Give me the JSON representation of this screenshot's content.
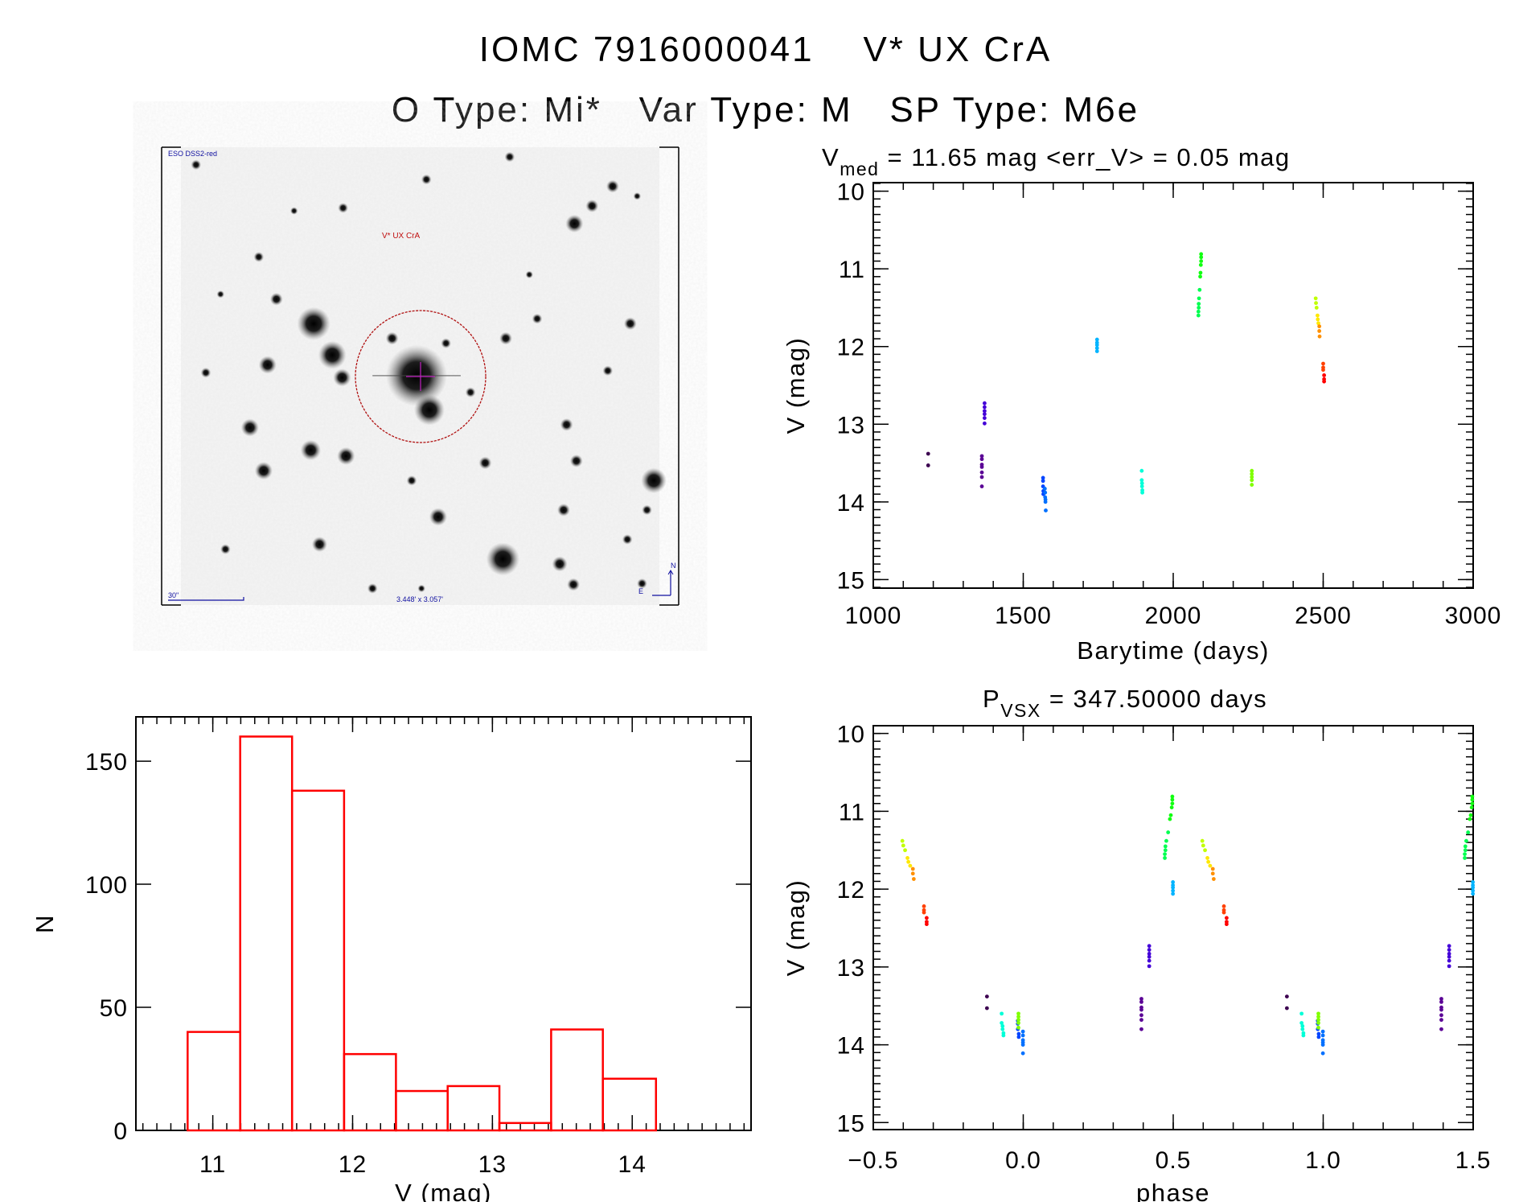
{
  "header": {
    "title": "IOMC 7916000041    V* UX CrA",
    "subtitle": "O Type: Mi*   Var Type: M   SP Type: M6e"
  },
  "sky_image": {
    "survey_label": "ESO DSS2-red",
    "target_label": "V* UX CrA",
    "scale_label": "30\"",
    "fov_label": "3.448' x 3.057'",
    "north_label": "N",
    "east_label": "E"
  },
  "chart_data": [
    {
      "type": "scatter",
      "id": "lightcurve",
      "title_main": "V",
      "title_sub": "med",
      "title_rest": " = 11.65 mag <err_V> = 0.05 mag",
      "xlabel": "Barytime (days)",
      "ylabel": "V (mag)",
      "xlim": [
        1000,
        3000
      ],
      "ylim": [
        15.11,
        9.89
      ],
      "xticks": [
        1000,
        1500,
        2000,
        2500,
        3000
      ],
      "xtick_labels": [
        "1000",
        "1500",
        "2000",
        "2500",
        "3000"
      ],
      "yticks": [
        10,
        11,
        12,
        13,
        14,
        15
      ],
      "ytick_labels": [
        "10",
        "11",
        "12",
        "13",
        "14",
        "15"
      ]
    },
    {
      "type": "scatter",
      "id": "phased",
      "title_main": "P",
      "title_sub": "VSX",
      "title_rest": " = 347.50000 days",
      "period_days": 347.5,
      "xlabel": "phase",
      "ylabel": "V (mag)",
      "xlim": [
        -0.5,
        1.5
      ],
      "ylim": [
        15.09,
        9.9
      ],
      "xticks": [
        -0.5,
        0.0,
        0.5,
        1.0,
        1.5
      ],
      "xtick_labels": [
        "−0.5",
        "0.0",
        "0.5",
        "1.0",
        "1.5"
      ],
      "yticks": [
        10,
        11,
        12,
        13,
        14,
        15
      ],
      "ytick_labels": [
        "10",
        "11",
        "12",
        "13",
        "14",
        "15"
      ]
    },
    {
      "type": "bar",
      "id": "histogram",
      "xlabel": "V (mag)",
      "ylabel": "N",
      "bin_edges": [
        10.82,
        11.196,
        11.567,
        11.939,
        12.31,
        12.68,
        13.05,
        13.42,
        13.79,
        14.17
      ],
      "values": [
        40,
        160,
        138,
        31,
        16,
        18,
        3,
        41,
        21
      ],
      "bar_color": "#ff0000",
      "xlim": [
        10.45,
        14.85
      ],
      "ylim": [
        0,
        168
      ],
      "xticks": [
        11,
        12,
        13,
        14
      ],
      "xtick_labels": [
        "11",
        "12",
        "13",
        "14"
      ],
      "yticks": [
        0,
        50,
        100,
        150
      ],
      "ytick_labels": [
        "0",
        "50",
        "100",
        "150"
      ]
    }
  ],
  "observations": [
    {
      "color": "#3c0050",
      "pts": [
        [
          1183,
          13.38,
          0.879
        ],
        [
          1183,
          13.53,
          0.879
        ]
      ]
    },
    {
      "color": "#5a0095",
      "pts": [
        [
          1362,
          13.41,
          0.394
        ],
        [
          1362,
          13.45,
          0.394
        ],
        [
          1362,
          13.52,
          0.394
        ],
        [
          1362,
          13.55,
          0.394
        ],
        [
          1362,
          13.62,
          0.394
        ],
        [
          1362,
          13.68,
          0.394
        ],
        [
          1362,
          13.8,
          0.394
        ]
      ]
    },
    {
      "color": "#4400d8",
      "pts": [
        [
          1371,
          12.73,
          0.42
        ],
        [
          1371,
          12.78,
          0.42
        ],
        [
          1371,
          12.83,
          0.42
        ],
        [
          1371,
          12.87,
          0.42
        ],
        [
          1371,
          12.92,
          0.42
        ],
        [
          1371,
          12.99,
          0.42
        ]
      ]
    },
    {
      "color": "#0044ff",
      "pts": [
        [
          1566,
          13.69,
          0.982
        ],
        [
          1566,
          13.73,
          0.982
        ],
        [
          1566,
          13.8,
          0.982
        ],
        [
          1567,
          13.86,
          0.985
        ],
        [
          1567,
          13.9,
          0.985
        ]
      ]
    },
    {
      "color": "#0070ff",
      "pts": [
        [
          1572,
          13.83,
          0.999
        ],
        [
          1573,
          13.88,
          0.999
        ],
        [
          1573,
          13.94,
          0.999
        ],
        [
          1574,
          13.97,
          0.999
        ],
        [
          1574,
          14.0,
          0.999
        ],
        [
          1575,
          14.11,
          0.999
        ]
      ]
    },
    {
      "color": "#00b4ff",
      "pts": [
        [
          1746,
          11.91,
          0.499
        ],
        [
          1746,
          11.95,
          0.499
        ],
        [
          1746,
          11.98,
          0.499
        ],
        [
          1746,
          12.02,
          0.499
        ],
        [
          1746,
          12.06,
          0.499
        ]
      ]
    },
    {
      "color": "#00ffd8",
      "pts": [
        [
          1895,
          13.6,
          0.928
        ],
        [
          1895,
          13.72,
          0.928
        ],
        [
          1896,
          13.76,
          0.931
        ],
        [
          1896,
          13.8,
          0.931
        ],
        [
          1897,
          13.85,
          0.934
        ],
        [
          1897,
          13.88,
          0.934
        ]
      ]
    },
    {
      "color": "#00ff50",
      "pts": [
        [
          2084,
          11.6,
          0.472
        ],
        [
          2084,
          11.55,
          0.472
        ],
        [
          2085,
          11.5,
          0.474
        ],
        [
          2085,
          11.45,
          0.474
        ],
        [
          2086,
          11.38,
          0.477
        ],
        [
          2088,
          11.27,
          0.483
        ]
      ]
    },
    {
      "color": "#10ff10",
      "pts": [
        [
          2090,
          11.1,
          0.489
        ],
        [
          2091,
          11.05,
          0.492
        ],
        [
          2092,
          10.95,
          0.495
        ],
        [
          2093,
          10.9,
          0.497
        ],
        [
          2093,
          10.85,
          0.497
        ],
        [
          2093,
          10.81,
          0.497
        ]
      ]
    },
    {
      "color": "#80ff00",
      "pts": [
        [
          2262,
          13.6,
          0.984
        ],
        [
          2262,
          13.64,
          0.984
        ],
        [
          2262,
          13.68,
          0.984
        ],
        [
          2262,
          13.72,
          0.984
        ],
        [
          2262,
          13.78,
          0.984
        ]
      ]
    },
    {
      "color": "#c0ff00",
      "pts": [
        [
          2475,
          11.38,
          0.597
        ],
        [
          2476,
          11.44,
          0.6
        ],
        [
          2478,
          11.5,
          0.606
        ]
      ]
    },
    {
      "color": "#ffe800",
      "pts": [
        [
          2481,
          11.6,
          0.614
        ],
        [
          2482,
          11.65,
          0.617
        ],
        [
          2484,
          11.7,
          0.623
        ]
      ]
    },
    {
      "color": "#ff9000",
      "pts": [
        [
          2487,
          11.74,
          0.632
        ],
        [
          2487,
          11.8,
          0.632
        ],
        [
          2488,
          11.87,
          0.635
        ]
      ]
    },
    {
      "color": "#ff4000",
      "pts": [
        [
          2500,
          12.22,
          0.669
        ],
        [
          2500,
          12.27,
          0.669
        ],
        [
          2500,
          12.3,
          0.669
        ]
      ]
    },
    {
      "color": "#ff0000",
      "pts": [
        [
          2503,
          12.37,
          0.678
        ],
        [
          2503,
          12.42,
          0.678
        ],
        [
          2503,
          12.45,
          0.678
        ]
      ]
    }
  ]
}
